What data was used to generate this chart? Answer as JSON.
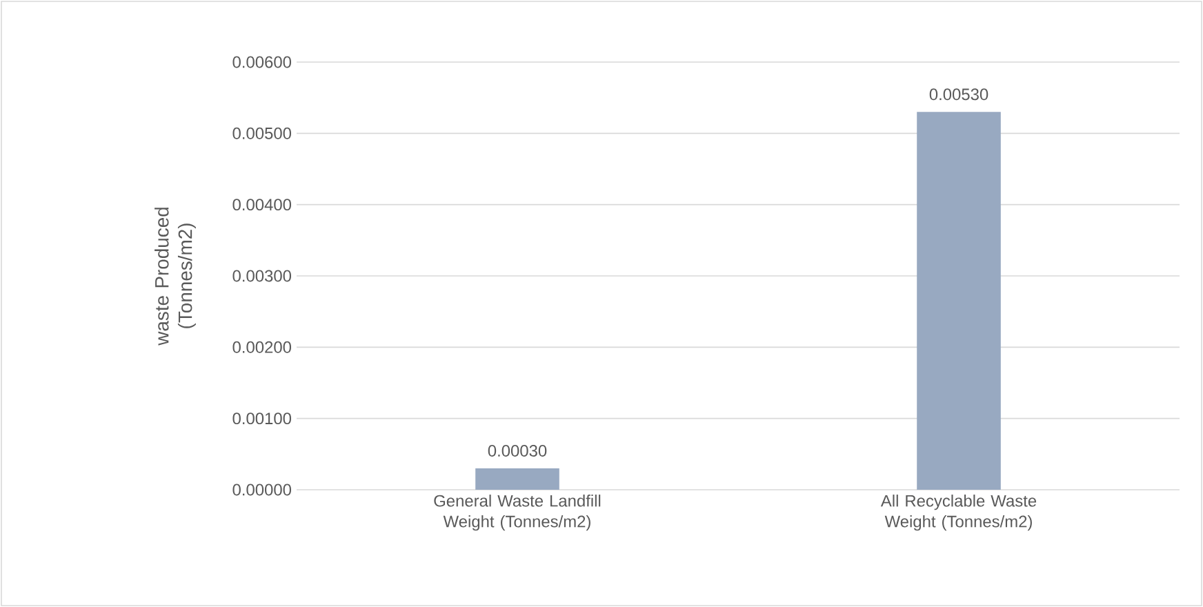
{
  "chart_data": {
    "type": "bar",
    "ylabel": "waste Produced (Tonnes/m2)",
    "categories": [
      "General Waste Landfill Weight (Tonnes/m2)",
      "All Recyclable Waste Weight (Tonnes/m2)"
    ],
    "values": [
      0.0003,
      0.0053
    ],
    "value_labels": [
      "0.00030",
      "0.00530"
    ],
    "color": "#98a9c1",
    "ylim": [
      0,
      0.006
    ],
    "yticks": [
      {
        "value": 0,
        "label": "0.00000"
      },
      {
        "value": 0.001,
        "label": "0.00100"
      },
      {
        "value": 0.002,
        "label": "0.00200"
      },
      {
        "value": 0.003,
        "label": "0.00300"
      },
      {
        "value": 0.004,
        "label": "0.00400"
      },
      {
        "value": 0.005,
        "label": "0.00500"
      },
      {
        "value": 0.006,
        "label": "0.00600"
      }
    ],
    "grid": "y"
  }
}
